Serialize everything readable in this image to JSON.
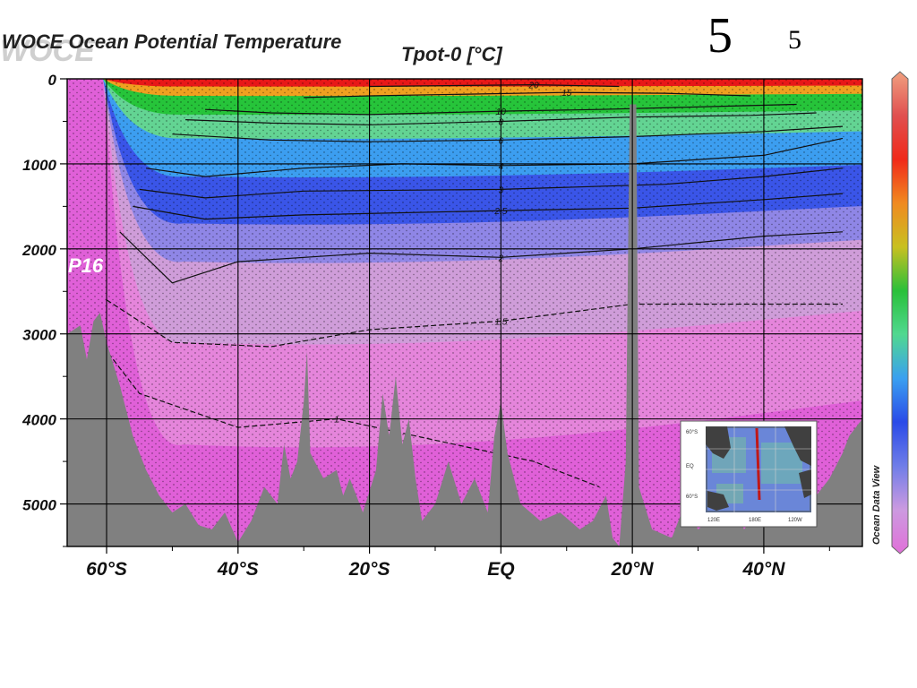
{
  "slide": {
    "number_large": "5",
    "number_small": "5"
  },
  "chart_data": {
    "type": "heatmap",
    "title_left": "WOCE Ocean Potential Temperature",
    "watermark": "WOCE",
    "title": "Tpot-0 [°C]",
    "section_label": "P16",
    "colorbar_credit": "Ocean Data View",
    "xlabel": "",
    "ylabel": "",
    "x_range": [
      -66,
      55
    ],
    "y_range": [
      0,
      5500
    ],
    "y_inverted": true,
    "grid": true,
    "x_ticks": [
      {
        "value": -60,
        "label": "60°S"
      },
      {
        "value": -40,
        "label": "40°S"
      },
      {
        "value": -20,
        "label": "20°S"
      },
      {
        "value": 0,
        "label": "EQ"
      },
      {
        "value": 20,
        "label": "20°N"
      },
      {
        "value": 40,
        "label": "40°N"
      }
    ],
    "y_ticks": [
      {
        "value": 0,
        "label": "0"
      },
      {
        "value": 1000,
        "label": "1000"
      },
      {
        "value": 2000,
        "label": "2000"
      },
      {
        "value": 3000,
        "label": "3000"
      },
      {
        "value": 4000,
        "label": "4000"
      },
      {
        "value": 5000,
        "label": "5000"
      }
    ],
    "colors": {
      "bottom": "#808080",
      "grid": "#000000"
    },
    "color_bands": [
      {
        "temp_top": 30,
        "depth_top": 0,
        "depth_bottom": 5500,
        "color": "#e060d8"
      },
      {
        "temp_top": 1.0,
        "depth_top": 0,
        "depth_bottom": 4300,
        "color": "#e585db"
      },
      {
        "temp_top": 1.5,
        "depth_top": 0,
        "depth_bottom": 3100,
        "color": "#cf9dd9"
      },
      {
        "temp_top": 2.0,
        "depth_top": 0,
        "depth_bottom": 2150,
        "color": "#8f86e6"
      },
      {
        "temp_top": 2.5,
        "depth_top": 0,
        "depth_bottom": 1700,
        "color": "#3a55e8"
      },
      {
        "temp_top": 4,
        "depth_top": 0,
        "depth_bottom": 1150,
        "color": "#3c9ef0"
      },
      {
        "temp_top": 6,
        "depth_top": 0,
        "depth_bottom": 700,
        "color": "#63d493"
      },
      {
        "temp_top": 10,
        "depth_top": 0,
        "depth_bottom": 420,
        "color": "#26c43a"
      },
      {
        "temp_top": 15,
        "depth_top": 0,
        "depth_bottom": 200,
        "color": "#f0a020"
      },
      {
        "temp_top": 20,
        "depth_top": 0,
        "depth_bottom": 90,
        "color": "#e81818"
      }
    ],
    "contours": [
      {
        "label": "20",
        "points": [
          [
            -20,
            90
          ],
          [
            -8,
            80
          ],
          [
            5,
            70
          ],
          [
            18,
            90
          ]
        ]
      },
      {
        "label": "15",
        "points": [
          [
            -30,
            220
          ],
          [
            -20,
            200
          ],
          [
            -5,
            180
          ],
          [
            10,
            160
          ],
          [
            25,
            170
          ],
          [
            38,
            200
          ]
        ]
      },
      {
        "label": "10",
        "points": [
          [
            -45,
            360
          ],
          [
            -35,
            400
          ],
          [
            -20,
            420
          ],
          [
            0,
            380
          ],
          [
            15,
            360
          ],
          [
            35,
            320
          ],
          [
            45,
            300
          ]
        ]
      },
      {
        "label": "8",
        "points": [
          [
            -48,
            480
          ],
          [
            -35,
            520
          ],
          [
            -20,
            540
          ],
          [
            0,
            500
          ],
          [
            20,
            450
          ],
          [
            38,
            430
          ],
          [
            48,
            400
          ]
        ]
      },
      {
        "label": "6",
        "points": [
          [
            -50,
            650
          ],
          [
            -35,
            720
          ],
          [
            -20,
            740
          ],
          [
            0,
            720
          ],
          [
            20,
            680
          ],
          [
            40,
            620
          ],
          [
            52,
            560
          ]
        ]
      },
      {
        "label": "4",
        "points": [
          [
            -54,
            1050
          ],
          [
            -45,
            1150
          ],
          [
            -30,
            1050
          ],
          [
            -15,
            1000
          ],
          [
            0,
            1020
          ],
          [
            20,
            1000
          ],
          [
            40,
            900
          ],
          [
            52,
            700
          ]
        ]
      },
      {
        "label": "3",
        "points": [
          [
            -55,
            1300
          ],
          [
            -45,
            1400
          ],
          [
            -30,
            1320
          ],
          [
            0,
            1300
          ],
          [
            25,
            1240
          ],
          [
            40,
            1150
          ],
          [
            52,
            1050
          ]
        ]
      },
      {
        "label": "2.5",
        "points": [
          [
            -56,
            1500
          ],
          [
            -45,
            1650
          ],
          [
            -30,
            1600
          ],
          [
            0,
            1550
          ],
          [
            20,
            1520
          ],
          [
            40,
            1420
          ],
          [
            52,
            1350
          ]
        ]
      },
      {
        "label": "2",
        "points": [
          [
            -58,
            1800
          ],
          [
            -50,
            2400
          ],
          [
            -40,
            2150
          ],
          [
            -20,
            2050
          ],
          [
            0,
            2100
          ],
          [
            20,
            2000
          ],
          [
            40,
            1850
          ],
          [
            52,
            1800
          ]
        ]
      },
      {
        "label": "1.5",
        "points": [
          [
            -60,
            2600
          ],
          [
            -50,
            3100
          ],
          [
            -35,
            3150
          ],
          [
            -20,
            2950
          ],
          [
            0,
            2850
          ],
          [
            20,
            2650
          ],
          [
            40,
            2650
          ],
          [
            52,
            2650
          ]
        ]
      },
      {
        "label": "1",
        "points": [
          [
            -62,
            3000
          ],
          [
            -55,
            3700
          ],
          [
            -40,
            4100
          ],
          [
            -25,
            4000
          ],
          [
            -10,
            4250
          ],
          [
            5,
            4500
          ],
          [
            15,
            4800
          ]
        ]
      }
    ],
    "bathymetry": [
      [
        -66,
        3000
      ],
      [
        -64,
        2900
      ],
      [
        -63,
        3300
      ],
      [
        -62,
        2850
      ],
      [
        -61,
        2750
      ],
      [
        -60,
        3100
      ],
      [
        -58,
        3600
      ],
      [
        -56,
        4200
      ],
      [
        -54,
        4600
      ],
      [
        -52,
        4900
      ],
      [
        -50,
        5100
      ],
      [
        -48,
        5000
      ],
      [
        -46,
        5250
      ],
      [
        -44,
        5300
      ],
      [
        -42,
        5100
      ],
      [
        -40,
        5450
      ],
      [
        -38,
        5200
      ],
      [
        -36,
        4800
      ],
      [
        -34,
        5000
      ],
      [
        -33,
        4300
      ],
      [
        -32,
        4700
      ],
      [
        -31,
        4500
      ],
      [
        -30,
        3800
      ],
      [
        -29.5,
        3200
      ],
      [
        -29,
        4400
      ],
      [
        -27,
        4700
      ],
      [
        -25,
        4600
      ],
      [
        -24,
        4900
      ],
      [
        -23,
        4700
      ],
      [
        -21,
        5100
      ],
      [
        -19,
        4600
      ],
      [
        -18,
        3700
      ],
      [
        -17,
        4200
      ],
      [
        -16,
        3500
      ],
      [
        -15,
        4300
      ],
      [
        -14,
        4000
      ],
      [
        -13,
        4700
      ],
      [
        -12,
        5200
      ],
      [
        -10,
        5000
      ],
      [
        -8,
        4500
      ],
      [
        -6,
        5000
      ],
      [
        -4,
        4700
      ],
      [
        -2,
        5100
      ],
      [
        -1,
        4200
      ],
      [
        0,
        3800
      ],
      [
        1,
        4400
      ],
      [
        3,
        5000
      ],
      [
        6,
        5200
      ],
      [
        9,
        5100
      ],
      [
        12,
        5300
      ],
      [
        14,
        5200
      ],
      [
        16,
        4900
      ],
      [
        17,
        5400
      ],
      [
        18,
        5500
      ],
      [
        19,
        4500
      ],
      [
        19.6,
        300
      ],
      [
        20.6,
        300
      ],
      [
        21,
        4800
      ],
      [
        23,
        5300
      ],
      [
        26,
        5400
      ],
      [
        28,
        5000
      ],
      [
        30,
        5300
      ],
      [
        33,
        5100
      ],
      [
        35,
        4900
      ],
      [
        37,
        5300
      ],
      [
        40,
        5000
      ],
      [
        42,
        5200
      ],
      [
        44,
        4700
      ],
      [
        46,
        5000
      ],
      [
        48,
        4900
      ],
      [
        50,
        4700
      ],
      [
        52,
        4400
      ],
      [
        53,
        4200
      ],
      [
        55,
        4000
      ]
    ],
    "colorbar": {
      "colors": [
        "#e070d8",
        "#cc9ae0",
        "#6f7de8",
        "#2a4ae8",
        "#3aa0f0",
        "#50d890",
        "#2ac03a",
        "#c8c020",
        "#f08a20",
        "#f02a1a",
        "#e05050",
        "#f0a080"
      ]
    },
    "inset_map": {
      "lat_labels": [
        "60°S",
        "EQ",
        "60°S"
      ],
      "lon_labels": [
        "120E",
        "180E",
        "120W"
      ]
    }
  }
}
